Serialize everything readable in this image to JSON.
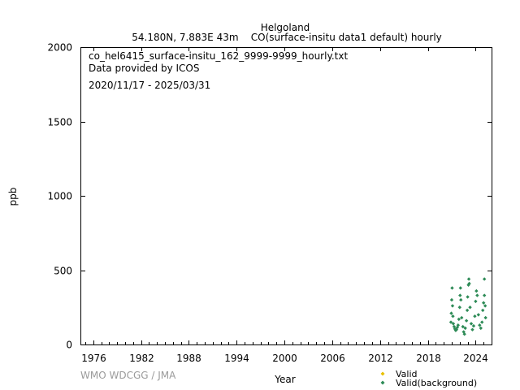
{
  "colors": {
    "valid": "#e8c000",
    "valid_background": "#2e8b57",
    "axis": "#000000",
    "credit": "#9a9a9a"
  },
  "chart_data": {
    "type": "scatter",
    "title": "Helgoland",
    "subtitle": "54.180N, 7.883E 43m    CO(surface-insitu data1 default) hourly",
    "annotations": [
      "co_hel6415_surface-insitu_162_9999-9999_hourly.txt",
      "Data provided by ICOS",
      "2020/11/17 - 2025/03/31"
    ],
    "xlabel": "Year",
    "ylabel": "ppb",
    "credit": "WMO WDCGG / JMA",
    "xlim": [
      1974.5,
      2026.0
    ],
    "ylim": [
      0,
      2000
    ],
    "x_ticks": [
      1976,
      1982,
      1988,
      1994,
      2000,
      2006,
      2012,
      2018,
      2024
    ],
    "y_ticks": [
      0,
      500,
      1000,
      1500,
      2000
    ],
    "legend_position": "bottom-right",
    "grid": false,
    "series": [
      {
        "name": "Valid",
        "marker": "diamond",
        "points": []
      },
      {
        "name": "Valid(background)",
        "marker": "diamond",
        "points": [
          [
            2020.9,
            150
          ],
          [
            2020.95,
            210
          ],
          [
            2021.0,
            300
          ],
          [
            2021.05,
            380
          ],
          [
            2021.1,
            260
          ],
          [
            2021.15,
            190
          ],
          [
            2021.2,
            140
          ],
          [
            2021.3,
            120
          ],
          [
            2021.4,
            105
          ],
          [
            2021.5,
            95
          ],
          [
            2021.6,
            100
          ],
          [
            2021.7,
            115
          ],
          [
            2021.8,
            130
          ],
          [
            2021.9,
            170
          ],
          [
            2022.0,
            250
          ],
          [
            2022.05,
            330
          ],
          [
            2022.1,
            380
          ],
          [
            2022.15,
            300
          ],
          [
            2022.25,
            180
          ],
          [
            2022.4,
            120
          ],
          [
            2022.5,
            85
          ],
          [
            2022.6,
            70
          ],
          [
            2022.7,
            110
          ],
          [
            2022.85,
            160
          ],
          [
            2022.95,
            230
          ],
          [
            2023.0,
            320
          ],
          [
            2023.1,
            400
          ],
          [
            2023.15,
            440
          ],
          [
            2023.2,
            410
          ],
          [
            2023.3,
            250
          ],
          [
            2023.45,
            140
          ],
          [
            2023.6,
            100
          ],
          [
            2023.75,
            125
          ],
          [
            2023.9,
            190
          ],
          [
            2024.0,
            290
          ],
          [
            2024.1,
            360
          ],
          [
            2024.2,
            330
          ],
          [
            2024.35,
            200
          ],
          [
            2024.5,
            130
          ],
          [
            2024.65,
            110
          ],
          [
            2024.8,
            150
          ],
          [
            2024.9,
            230
          ],
          [
            2025.0,
            280
          ],
          [
            2025.1,
            330
          ],
          [
            2025.2,
            260
          ],
          [
            2025.25,
            180
          ],
          [
            2025.1,
            440
          ]
        ]
      }
    ]
  }
}
